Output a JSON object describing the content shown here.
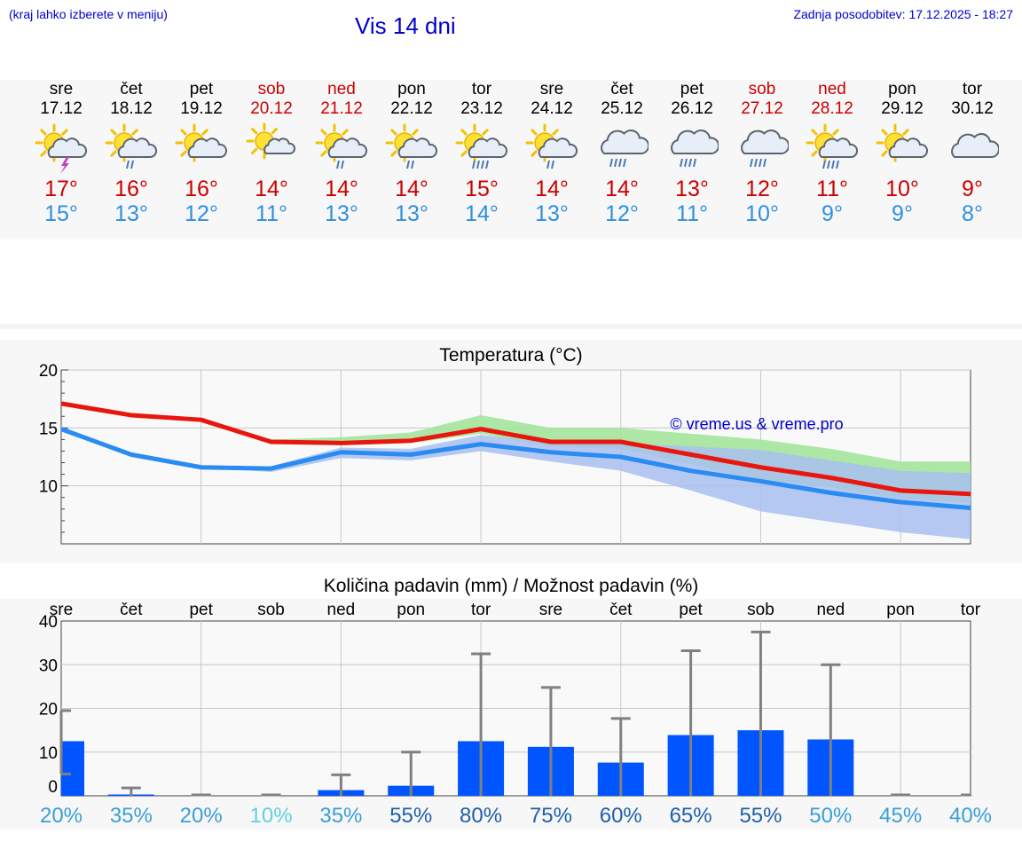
{
  "header": {
    "hint": "(kraj lahko izberete v meniju)",
    "title": "Vis 14 dni",
    "updated": "Zadnja posodobitev: 17.12.2025 - 18:27"
  },
  "days": [
    {
      "name": "sre",
      "date": "17.12",
      "icon": "sun-cloud-thunder-icon",
      "max": "17°",
      "min": "15°",
      "weekend": false
    },
    {
      "name": "čet",
      "date": "18.12",
      "icon": "sun-cloud-rain-icon",
      "max": "16°",
      "min": "13°",
      "weekend": false
    },
    {
      "name": "pet",
      "date": "19.12",
      "icon": "sun-cloud-icon",
      "max": "16°",
      "min": "12°",
      "weekend": false
    },
    {
      "name": "sob",
      "date": "20.12",
      "icon": "sun-small-cloud-icon",
      "max": "14°",
      "min": "11°",
      "weekend": true
    },
    {
      "name": "ned",
      "date": "21.12",
      "icon": "sun-cloud-rain-icon",
      "max": "14°",
      "min": "13°",
      "weekend": true
    },
    {
      "name": "pon",
      "date": "22.12",
      "icon": "sun-cloud-rain-icon",
      "max": "14°",
      "min": "13°",
      "weekend": false
    },
    {
      "name": "tor",
      "date": "23.12",
      "icon": "sun-cloud-heavy-rain-icon",
      "max": "15°",
      "min": "14°",
      "weekend": false
    },
    {
      "name": "sre",
      "date": "24.12",
      "icon": "sun-cloud-rain-icon",
      "max": "14°",
      "min": "13°",
      "weekend": false
    },
    {
      "name": "čet",
      "date": "25.12",
      "icon": "cloud-heavy-rain-icon",
      "max": "14°",
      "min": "12°",
      "weekend": false
    },
    {
      "name": "pet",
      "date": "26.12",
      "icon": "cloud-heavy-rain-icon",
      "max": "13°",
      "min": "11°",
      "weekend": false
    },
    {
      "name": "sob",
      "date": "27.12",
      "icon": "cloud-heavy-rain-icon",
      "max": "12°",
      "min": "10°",
      "weekend": true
    },
    {
      "name": "ned",
      "date": "28.12",
      "icon": "sun-cloud-heavy-rain-icon",
      "max": "11°",
      "min": "9°",
      "weekend": true
    },
    {
      "name": "pon",
      "date": "29.12",
      "icon": "sun-cloud-icon",
      "max": "10°",
      "min": "9°",
      "weekend": false
    },
    {
      "name": "tor",
      "date": "30.12",
      "icon": "cloud-icon",
      "max": "9°",
      "min": "8°",
      "weekend": false
    }
  ],
  "colors": {
    "accent": "#0000cc",
    "max": "#cc0000",
    "min": "#2f8fe0",
    "bar": "#0055ff",
    "band_max": "#a8e6a0",
    "band_min": "#a8c0f0",
    "whisker": "#808080"
  },
  "chart_data": [
    {
      "type": "line",
      "title": "Temperatura (°C)",
      "watermark": "© vreme.us & vreme.pro",
      "ylim": [
        5,
        20
      ],
      "yticks": [
        10,
        15,
        20
      ],
      "x": [
        0,
        1,
        2,
        3,
        4,
        5,
        6,
        7,
        8,
        9,
        10,
        11,
        12,
        13
      ],
      "series": [
        {
          "name": "max",
          "color": "#e8160c",
          "values": [
            17.1,
            16.1,
            15.7,
            13.8,
            13.7,
            13.9,
            14.9,
            13.8,
            13.8,
            12.7,
            11.6,
            10.7,
            9.6,
            9.3
          ]
        },
        {
          "name": "min",
          "color": "#2a8bf2",
          "values": [
            14.9,
            12.7,
            11.6,
            11.5,
            12.9,
            12.7,
            13.6,
            12.9,
            12.5,
            11.3,
            10.4,
            9.4,
            8.6,
            8.1
          ]
        }
      ],
      "bands": [
        {
          "name": "max-range",
          "low": [
            17.0,
            16.1,
            15.7,
            13.6,
            13.5,
            13.7,
            14.5,
            13.4,
            13.2,
            11.9,
            10.5,
            9.9,
            8.9,
            8.6
          ],
          "high": [
            17.3,
            16.1,
            15.7,
            14.0,
            14.2,
            14.6,
            16.1,
            15.0,
            15.0,
            14.5,
            14.0,
            13.2,
            12.1,
            12.1
          ]
        },
        {
          "name": "min-range",
          "low": [
            14.7,
            12.7,
            11.6,
            11.2,
            12.4,
            12.2,
            13.0,
            12.1,
            11.3,
            9.6,
            7.8,
            6.9,
            6.0,
            5.4
          ],
          "high": [
            15.1,
            12.7,
            11.6,
            11.7,
            13.3,
            13.2,
            14.4,
            13.7,
            13.7,
            13.4,
            13.1,
            12.2,
            11.3,
            11.1
          ]
        }
      ]
    },
    {
      "type": "bar",
      "title": "Količina padavin (mm) / Možnost padavin (%)",
      "categories": [
        "sre",
        "čet",
        "pet",
        "sob",
        "ned",
        "pon",
        "tor",
        "sre",
        "čet",
        "pet",
        "sob",
        "ned",
        "pon",
        "tor"
      ],
      "values": [
        12.5,
        0.3,
        0,
        0,
        1.3,
        2.3,
        12.5,
        11.2,
        7.6,
        13.9,
        15.0,
        12.9,
        0,
        0
      ],
      "error_low": [
        5,
        0,
        0,
        0,
        0,
        0,
        0,
        0,
        0,
        0,
        0,
        0,
        0,
        0
      ],
      "error_high": [
        19.5,
        1.8,
        0.2,
        0.2,
        4.8,
        10.0,
        32.5,
        24.8,
        17.7,
        33.2,
        37.5,
        30.0,
        0.2,
        0.2
      ],
      "ylim": [
        0,
        40
      ],
      "yticks": [
        0,
        10,
        20,
        30,
        40
      ],
      "probability": [
        "20%",
        "35%",
        "20%",
        "10%",
        "35%",
        "55%",
        "80%",
        "75%",
        "60%",
        "65%",
        "55%",
        "50%",
        "45%",
        "40%"
      ],
      "probability_values": [
        20,
        35,
        20,
        10,
        35,
        55,
        80,
        75,
        60,
        65,
        55,
        50,
        45,
        40
      ]
    }
  ]
}
